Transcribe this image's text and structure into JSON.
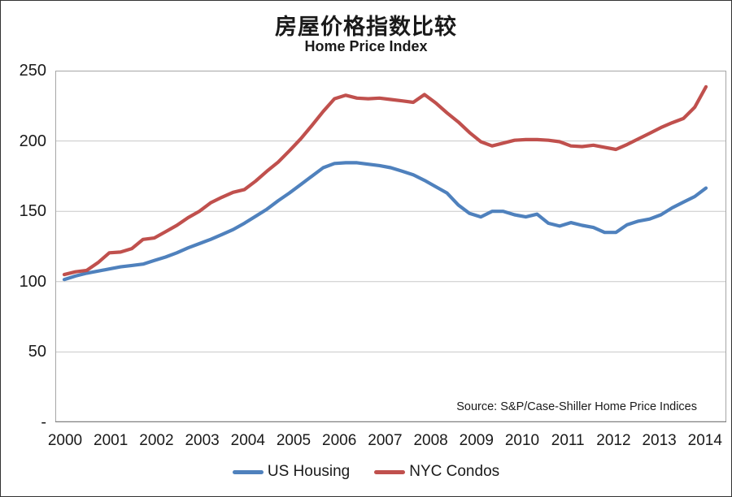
{
  "chart_data": {
    "type": "line",
    "title": "房屋价格指数比较",
    "subtitle": "Home Price Index",
    "source_note": "Source: S&P/Case-Shiller Home Price Indices",
    "ylim": [
      0,
      250
    ],
    "y_tick_interval": 50,
    "y_tick_labels": [
      "250",
      "200",
      "150",
      "100",
      "50",
      "-"
    ],
    "x_tick_labels": [
      "2000",
      "2001",
      "2002",
      "2003",
      "2004",
      "2005",
      "2006",
      "2007",
      "2008",
      "2009",
      "2010",
      "2011",
      "2012",
      "2013",
      "2014"
    ],
    "x_frequency": "quarterly",
    "x_range": "2000Q1-2014Q2",
    "grid": true,
    "grid_color": "#c8c8c8",
    "axis_color": "#808080",
    "plot_border_color": "#a6a6a6",
    "legend_position": "bottom-center",
    "legend": [
      {
        "label": "US Housing",
        "color": "#4F81BD"
      },
      {
        "label": "NYC Condos",
        "color": "#C0504D"
      }
    ],
    "series": [
      {
        "name": "US Housing",
        "color": "#4F81BD",
        "values": [
          101.5,
          104,
          106,
          107.5,
          109,
          110.5,
          111.5,
          112.5,
          115,
          117.5,
          120.5,
          124,
          127,
          130,
          133.5,
          137,
          141.5,
          146.5,
          151.5,
          157.5,
          163,
          169,
          175,
          181,
          184,
          184.5,
          184.5,
          183.5,
          182.5,
          181,
          178.5,
          176,
          172,
          167.5,
          163,
          154.5,
          148.5,
          146,
          150,
          150,
          147.5,
          146,
          148,
          141.5,
          139.5,
          142,
          140,
          138.5,
          135,
          135,
          140.5,
          143,
          144.5,
          147.5,
          152.5,
          156.5,
          160.5,
          166.5
        ]
      },
      {
        "name": "NYC Condos",
        "color": "#C0504D",
        "values": [
          105,
          107,
          108,
          113.5,
          120.5,
          121,
          123.5,
          130,
          131,
          135.5,
          140,
          145.5,
          150,
          156,
          160,
          163.5,
          165.5,
          171.5,
          178.5,
          185,
          193,
          201.5,
          211,
          221,
          230,
          232.5,
          230.5,
          230,
          230.5,
          229.5,
          228.5,
          227.5,
          233,
          227,
          220,
          213.5,
          206,
          199.5,
          196.5,
          198.5,
          200.5,
          201,
          201,
          200.5,
          199.5,
          196.5,
          196,
          197,
          195.5,
          194,
          197.5,
          201.5,
          205.5,
          209.5,
          213,
          216,
          224,
          238.5
        ]
      }
    ]
  }
}
